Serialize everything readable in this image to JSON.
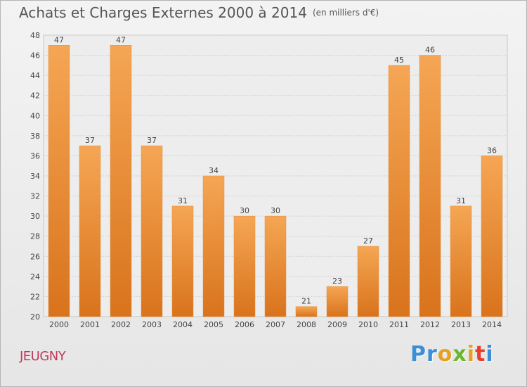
{
  "title": "Achats et Charges Externes 2000 à 2014",
  "unit_note": "(en milliers d'€)",
  "commune": "JEUGNY",
  "logo": {
    "letters": [
      "P",
      "r",
      "o",
      "x",
      "i",
      "t",
      "i"
    ],
    "colors": [
      "#3b8fd6",
      "#3b8fd6",
      "#e8a020",
      "#6ab72e",
      "#e8a020",
      "#e83e2c",
      "#3b8fd6"
    ]
  },
  "colors": {
    "bar_top": "#f5a654",
    "bar_bottom": "#d9731c",
    "grid": "#cfcfcf",
    "title": "#555555",
    "commune": "#c0395a"
  },
  "chart_data": {
    "type": "bar",
    "title": "Achats et Charges Externes 2000 à 2014",
    "subtitle": "(en milliers d'€)",
    "xlabel": "",
    "ylabel": "",
    "categories": [
      "2000",
      "2001",
      "2002",
      "2003",
      "2004",
      "2005",
      "2006",
      "2007",
      "2008",
      "2009",
      "2010",
      "2011",
      "2012",
      "2013",
      "2014"
    ],
    "values": [
      47,
      37,
      47,
      37,
      31,
      34,
      30,
      30,
      21,
      23,
      27,
      45,
      46,
      31,
      36
    ],
    "ylim": [
      20,
      48
    ],
    "yticks": [
      20,
      22,
      24,
      26,
      28,
      30,
      32,
      34,
      36,
      38,
      40,
      42,
      44,
      46,
      48
    ],
    "grid": true,
    "legend": "none"
  }
}
